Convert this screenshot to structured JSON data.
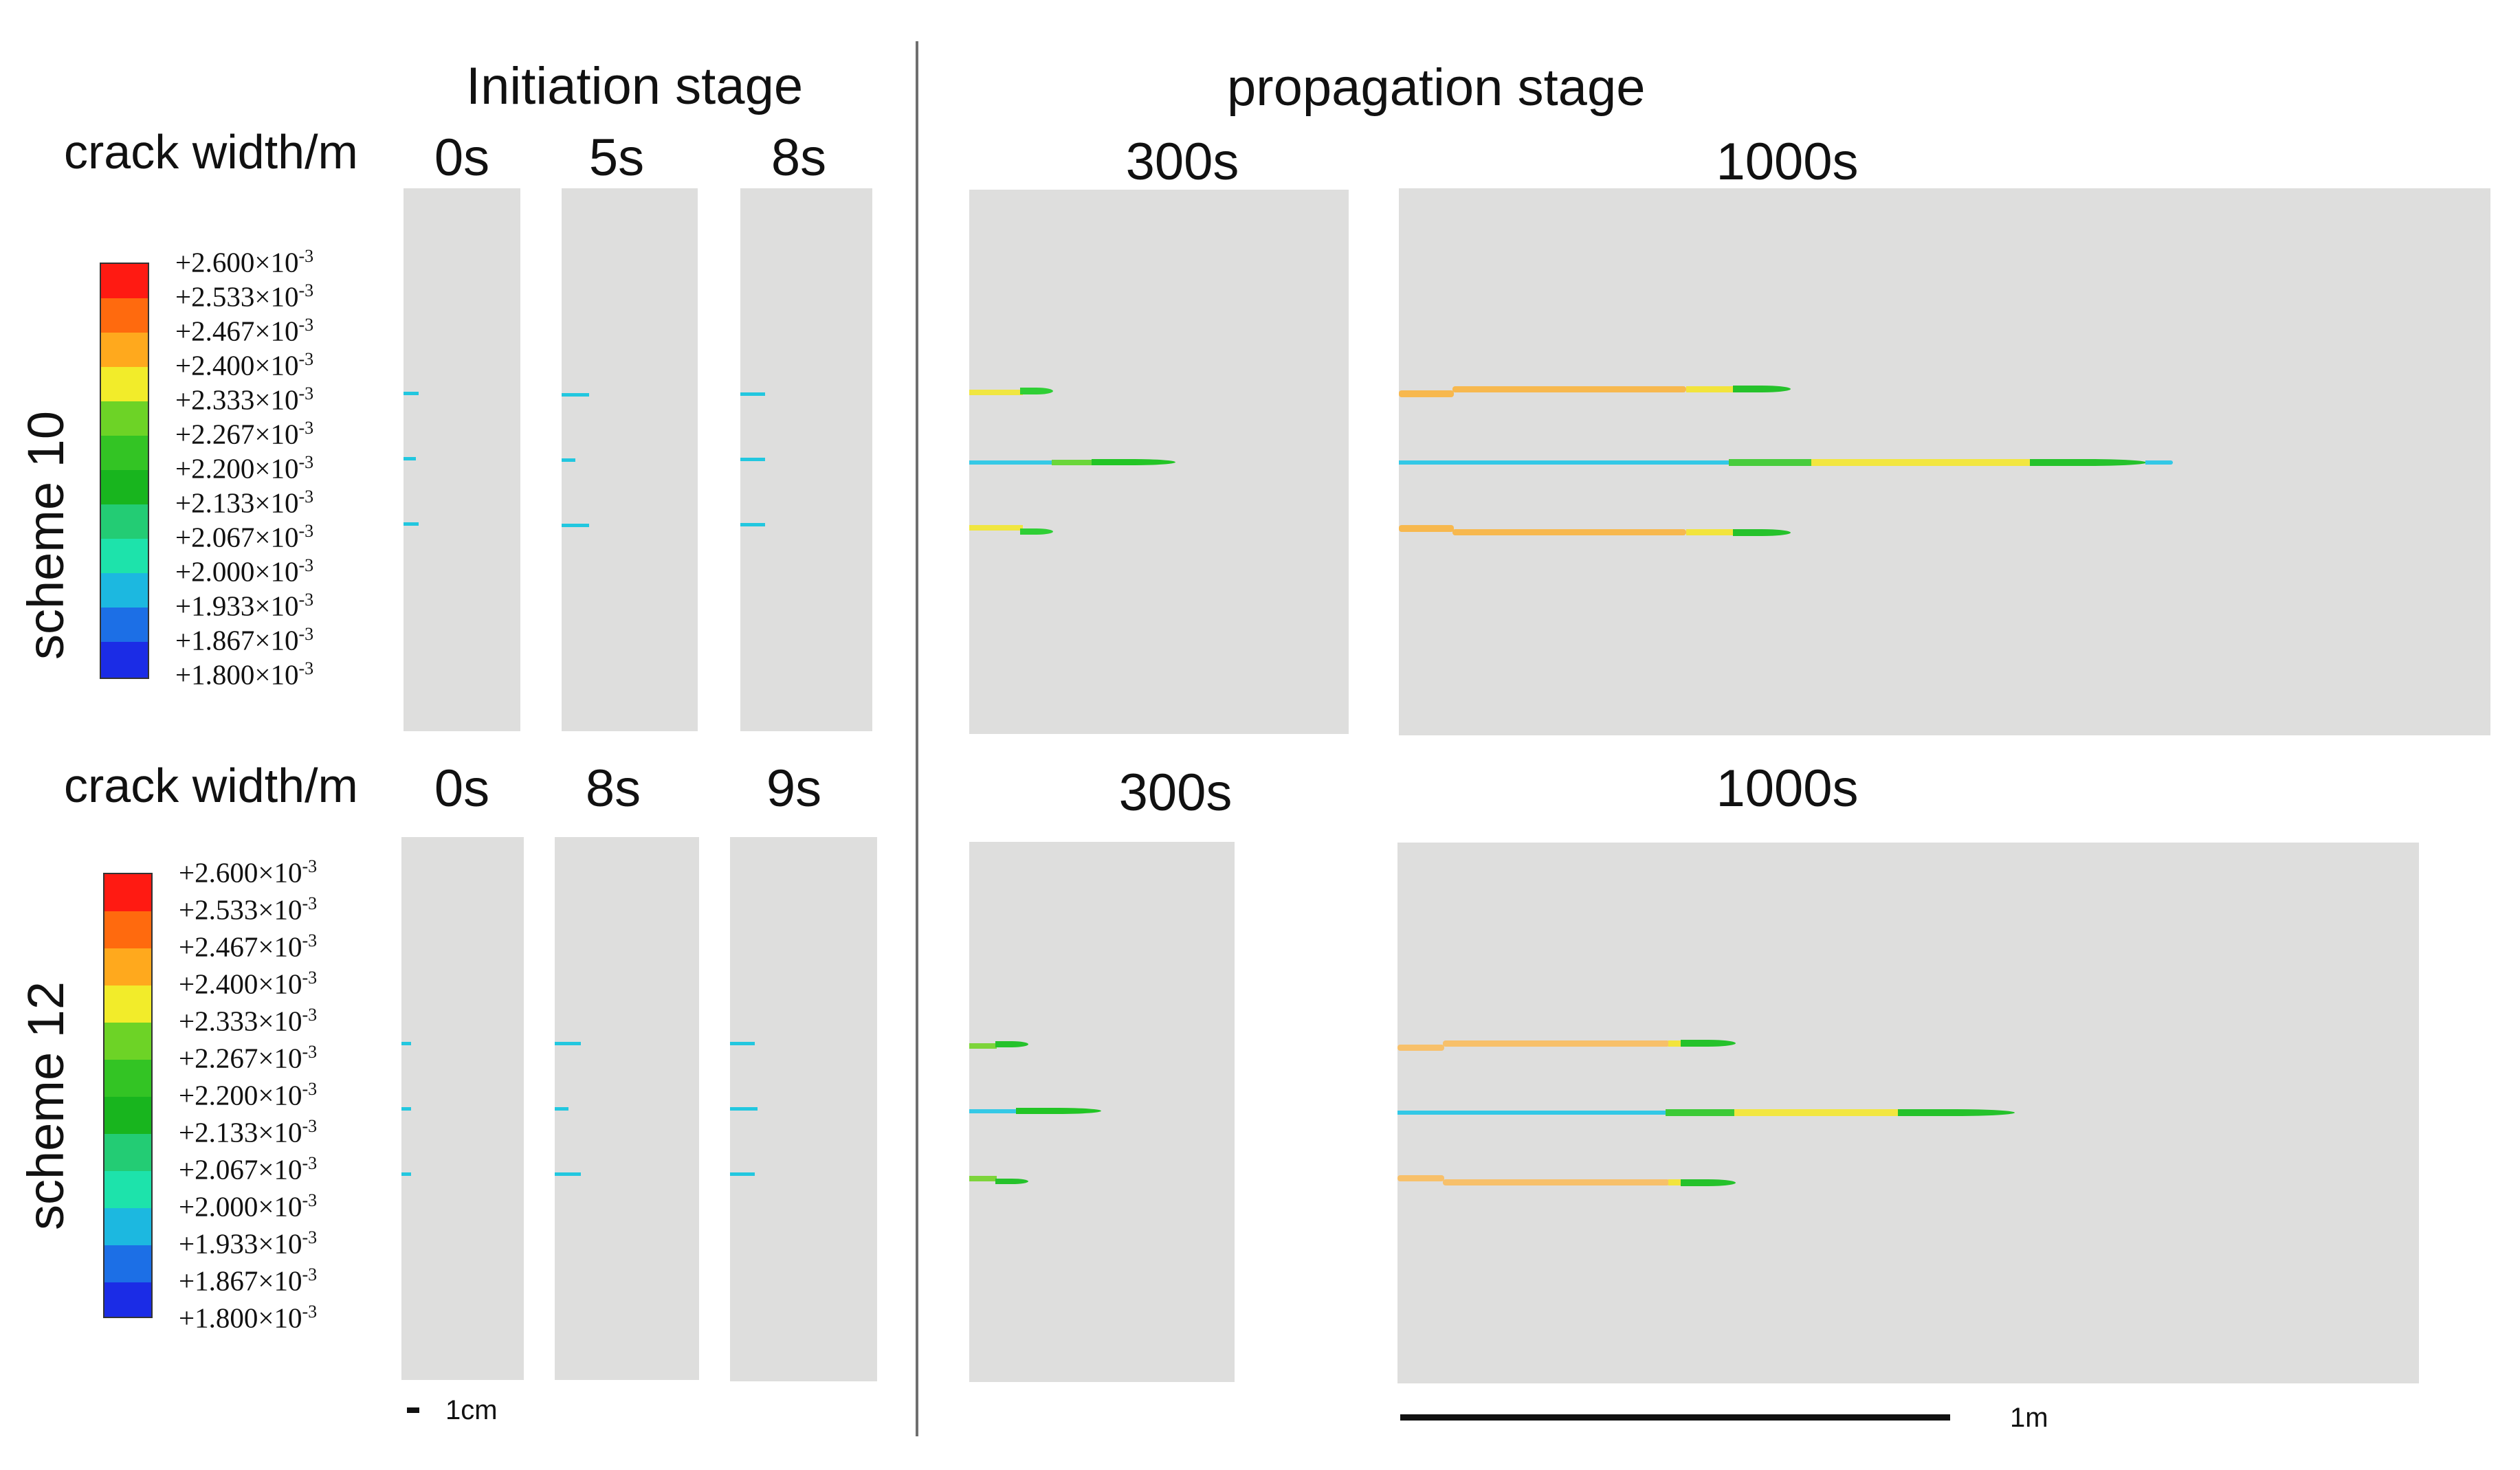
{
  "headers": {
    "initiation": "Initiation stage",
    "propagation": "propagation stage",
    "crack_width": "crack width/m"
  },
  "schemes": [
    {
      "label": "scheme 10",
      "initiation_times": [
        "0s",
        "5s",
        "8s"
      ],
      "propagation_times": [
        "300s",
        "1000s"
      ]
    },
    {
      "label": "scheme 12",
      "initiation_times": [
        "0s",
        "8s",
        "9s"
      ],
      "propagation_times": [
        "300s",
        "1000s"
      ]
    }
  ],
  "legend": {
    "values": [
      "+2.600",
      "+2.533",
      "+2.467",
      "+2.400",
      "+2.333",
      "+2.267",
      "+2.200",
      "+2.133",
      "+2.067",
      "+2.000",
      "+1.933",
      "+1.867",
      "+1.800"
    ],
    "suffix": "×10",
    "exponent": "-3",
    "colors": [
      "#ff1a12",
      "#ff6a0e",
      "#ffa91d",
      "#f2ec2a",
      "#6dd326",
      "#33c424",
      "#18b51e",
      "#23cc74",
      "#1de3ab",
      "#1cb8e0",
      "#1c6fe6",
      "#1b2ce6"
    ]
  },
  "scale_bars": {
    "small": "1cm",
    "large": "1m"
  }
}
